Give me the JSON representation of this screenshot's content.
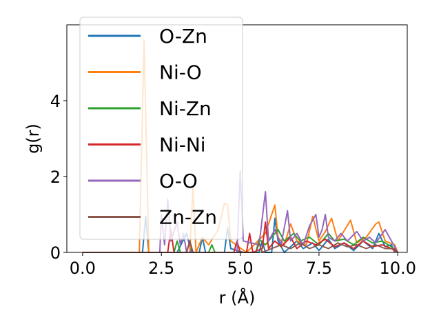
{
  "chart_data": {
    "type": "line",
    "xlabel": "r (Å)",
    "ylabel": "g(r)",
    "xlim": [
      -0.5,
      10.3
    ],
    "ylim": [
      0,
      6.0
    ],
    "xticks": [
      0.0,
      2.5,
      5.0,
      7.5,
      10.0
    ],
    "xtick_labels": [
      "0.0",
      "2.5",
      "5.0",
      "7.5",
      "10.0"
    ],
    "yticks": [
      0,
      2,
      4
    ],
    "ytick_labels": [
      "0",
      "2",
      "4"
    ],
    "legend_position": "upper-left",
    "series": [
      {
        "name": "O-Zn",
        "color": "#1f77b4",
        "points": [
          [
            0,
            0
          ],
          [
            1.9,
            0
          ],
          [
            2.0,
            0.95
          ],
          [
            2.1,
            0
          ],
          [
            3.0,
            0
          ],
          [
            3.3,
            0.5
          ],
          [
            3.45,
            0
          ],
          [
            3.7,
            0
          ],
          [
            3.8,
            0.4
          ],
          [
            3.9,
            0
          ],
          [
            4.5,
            0
          ],
          [
            4.6,
            0.65
          ],
          [
            4.7,
            0.1
          ],
          [
            5.1,
            0
          ],
          [
            5.6,
            0
          ],
          [
            5.7,
            0.3
          ],
          [
            5.8,
            0
          ],
          [
            6.0,
            0
          ],
          [
            6.1,
            0.9
          ],
          [
            6.2,
            0.3
          ],
          [
            6.4,
            0
          ],
          [
            6.8,
            0.3
          ],
          [
            7.0,
            0.1
          ],
          [
            7.3,
            0.25
          ],
          [
            7.5,
            0.05
          ],
          [
            7.8,
            0.35
          ],
          [
            8.0,
            0.1
          ],
          [
            8.3,
            0.25
          ],
          [
            8.6,
            0.05
          ],
          [
            8.9,
            0.3
          ],
          [
            9.2,
            0.1
          ],
          [
            9.4,
            0.5
          ],
          [
            9.6,
            0.15
          ],
          [
            9.8,
            0.2
          ],
          [
            9.9,
            0
          ]
        ]
      },
      {
        "name": "Ni-O",
        "color": "#ff7f0e",
        "points": [
          [
            0,
            0
          ],
          [
            1.8,
            0
          ],
          [
            1.95,
            5.6
          ],
          [
            2.1,
            0
          ],
          [
            3.4,
            0
          ],
          [
            3.5,
            1.7
          ],
          [
            3.6,
            0
          ],
          [
            3.8,
            0.4
          ],
          [
            4.0,
            0.2
          ],
          [
            4.3,
            0.6
          ],
          [
            4.5,
            1.3
          ],
          [
            4.6,
            1.25
          ],
          [
            4.7,
            0.3
          ],
          [
            5.2,
            0
          ],
          [
            5.8,
            0.5
          ],
          [
            6.0,
            1.0
          ],
          [
            6.1,
            1.25
          ],
          [
            6.2,
            0.4
          ],
          [
            6.4,
            0.2
          ],
          [
            6.6,
            0.75
          ],
          [
            6.8,
            0.3
          ],
          [
            7.1,
            0.2
          ],
          [
            7.3,
            0.95
          ],
          [
            7.5,
            0.3
          ],
          [
            7.7,
            0.55
          ],
          [
            7.9,
            0.9
          ],
          [
            8.1,
            0.3
          ],
          [
            8.5,
            0.85
          ],
          [
            8.7,
            0.25
          ],
          [
            9.0,
            0.4
          ],
          [
            9.3,
            0.75
          ],
          [
            9.4,
            0.8
          ],
          [
            9.6,
            0.3
          ],
          [
            9.9,
            0.2
          ],
          [
            10.0,
            0
          ]
        ]
      },
      {
        "name": "Ni-Zn",
        "color": "#2ca02c",
        "points": [
          [
            0,
            0
          ],
          [
            2.9,
            0
          ],
          [
            3.0,
            0.3
          ],
          [
            3.1,
            0
          ],
          [
            4.0,
            0
          ],
          [
            4.1,
            0.2
          ],
          [
            4.2,
            0
          ],
          [
            5.5,
            0
          ],
          [
            5.6,
            0.35
          ],
          [
            5.8,
            0.2
          ],
          [
            6.0,
            0.4
          ],
          [
            6.2,
            0.6
          ],
          [
            6.4,
            0.3
          ],
          [
            6.7,
            0.5
          ],
          [
            6.9,
            0.3
          ],
          [
            7.2,
            0.4
          ],
          [
            7.5,
            0.2
          ],
          [
            7.8,
            0.5
          ],
          [
            8.0,
            0.3
          ],
          [
            8.3,
            0.35
          ],
          [
            8.6,
            0.2
          ],
          [
            8.9,
            0.4
          ],
          [
            9.2,
            0.25
          ],
          [
            9.5,
            0.3
          ],
          [
            9.8,
            0.15
          ],
          [
            10.0,
            0
          ]
        ]
      },
      {
        "name": "Ni-Ni",
        "color": "#d62728",
        "points": [
          [
            0,
            0
          ],
          [
            2.7,
            0
          ],
          [
            2.8,
            0.6
          ],
          [
            2.9,
            0
          ],
          [
            3.3,
            0
          ],
          [
            3.4,
            0.3
          ],
          [
            3.5,
            0
          ],
          [
            4.8,
            0
          ],
          [
            4.9,
            0.3
          ],
          [
            5.0,
            0
          ],
          [
            5.2,
            0
          ],
          [
            5.3,
            0.5
          ],
          [
            5.4,
            0
          ],
          [
            5.7,
            0.1
          ],
          [
            5.8,
            0.8
          ],
          [
            5.9,
            0.1
          ],
          [
            6.1,
            0.3
          ],
          [
            6.3,
            0.15
          ],
          [
            6.6,
            0.4
          ],
          [
            6.8,
            0.1
          ],
          [
            7.1,
            0.3
          ],
          [
            7.4,
            0.2
          ],
          [
            7.7,
            0.35
          ],
          [
            8.0,
            0.15
          ],
          [
            8.3,
            0.25
          ],
          [
            8.6,
            0.1
          ],
          [
            8.9,
            0.3
          ],
          [
            9.2,
            0.15
          ],
          [
            9.5,
            0.2
          ],
          [
            9.8,
            0.1
          ],
          [
            10.0,
            0
          ]
        ]
      },
      {
        "name": "O-O",
        "color": "#9467bd",
        "points": [
          [
            0,
            0
          ],
          [
            2.45,
            0
          ],
          [
            2.5,
            1.0
          ],
          [
            2.6,
            0.2
          ],
          [
            2.7,
            1.4
          ],
          [
            2.8,
            0.3
          ],
          [
            3.0,
            0.8
          ],
          [
            3.1,
            0.2
          ],
          [
            3.2,
            0.5
          ],
          [
            3.3,
            0
          ],
          [
            4.9,
            0
          ],
          [
            5.0,
            2.15
          ],
          [
            5.1,
            0.3
          ],
          [
            5.6,
            0.2
          ],
          [
            5.8,
            1.6
          ],
          [
            5.9,
            0.3
          ],
          [
            6.1,
            0.6
          ],
          [
            6.3,
            0.2
          ],
          [
            6.5,
            1.1
          ],
          [
            6.6,
            0.3
          ],
          [
            6.8,
            0.5
          ],
          [
            7.0,
            0.2
          ],
          [
            7.2,
            0.7
          ],
          [
            7.4,
            1.0
          ],
          [
            7.5,
            0.4
          ],
          [
            7.6,
            0.6
          ],
          [
            7.7,
            1.0
          ],
          [
            7.8,
            0.4
          ],
          [
            8.0,
            0.3
          ],
          [
            8.2,
            0.5
          ],
          [
            8.4,
            0.3
          ],
          [
            8.7,
            0.55
          ],
          [
            8.9,
            0.3
          ],
          [
            9.1,
            0.4
          ],
          [
            9.3,
            0.25
          ],
          [
            9.6,
            0.6
          ],
          [
            9.8,
            0.3
          ],
          [
            10.0,
            0
          ]
        ]
      },
      {
        "name": "Zn-Zn",
        "color": "#8c564b",
        "points": [
          [
            0,
            0
          ],
          [
            3.3,
            0
          ],
          [
            3.4,
            0.3
          ],
          [
            3.5,
            0
          ],
          [
            5.5,
            0
          ],
          [
            5.6,
            0.25
          ],
          [
            5.7,
            0
          ],
          [
            6.0,
            0.1
          ],
          [
            6.3,
            0.2
          ],
          [
            6.6,
            0.1
          ],
          [
            6.9,
            0.25
          ],
          [
            7.2,
            0.1
          ],
          [
            7.5,
            0.2
          ],
          [
            7.8,
            0.1
          ],
          [
            8.1,
            0.25
          ],
          [
            8.4,
            0.15
          ],
          [
            8.7,
            0.2
          ],
          [
            9.0,
            0.1
          ],
          [
            9.3,
            0.2
          ],
          [
            9.6,
            0.1
          ],
          [
            9.9,
            0.1
          ],
          [
            10.0,
            0
          ]
        ]
      }
    ]
  }
}
